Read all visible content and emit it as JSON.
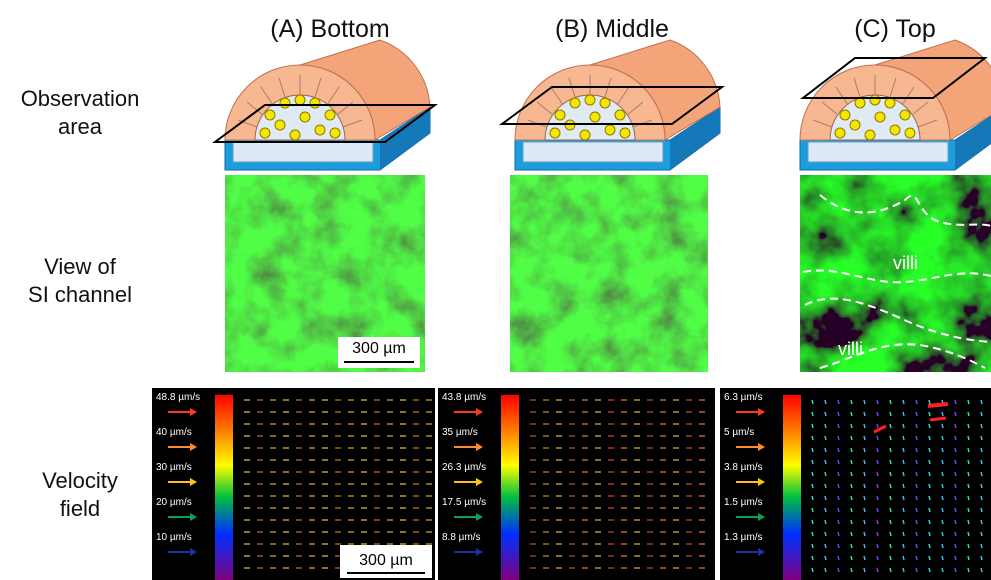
{
  "columns": [
    "(A) Bottom",
    "(B) Middle",
    "(C) Top"
  ],
  "rows": [
    [
      "Observation",
      "area"
    ],
    [
      "View of",
      "SI channel"
    ],
    [
      "Velocity",
      "field"
    ]
  ],
  "scale_bars": [
    "300 µm",
    "300 µm"
  ],
  "region_labels": [
    "villi",
    "villi"
  ],
  "velocity_legends": [
    [
      "48.8 µm/s",
      "40 µm/s",
      "30 µm/s",
      "20 µm/s",
      "10 µm/s"
    ],
    [
      "43.8 µm/s",
      "35 µm/s",
      "26.3 µm/s",
      "17.5 µm/s",
      "8.8 µm/s"
    ],
    [
      "6.3 µm/s",
      "5 µm/s",
      "3.8 µm/s",
      "1.5 µm/s",
      "1.3 µm/s"
    ]
  ]
}
